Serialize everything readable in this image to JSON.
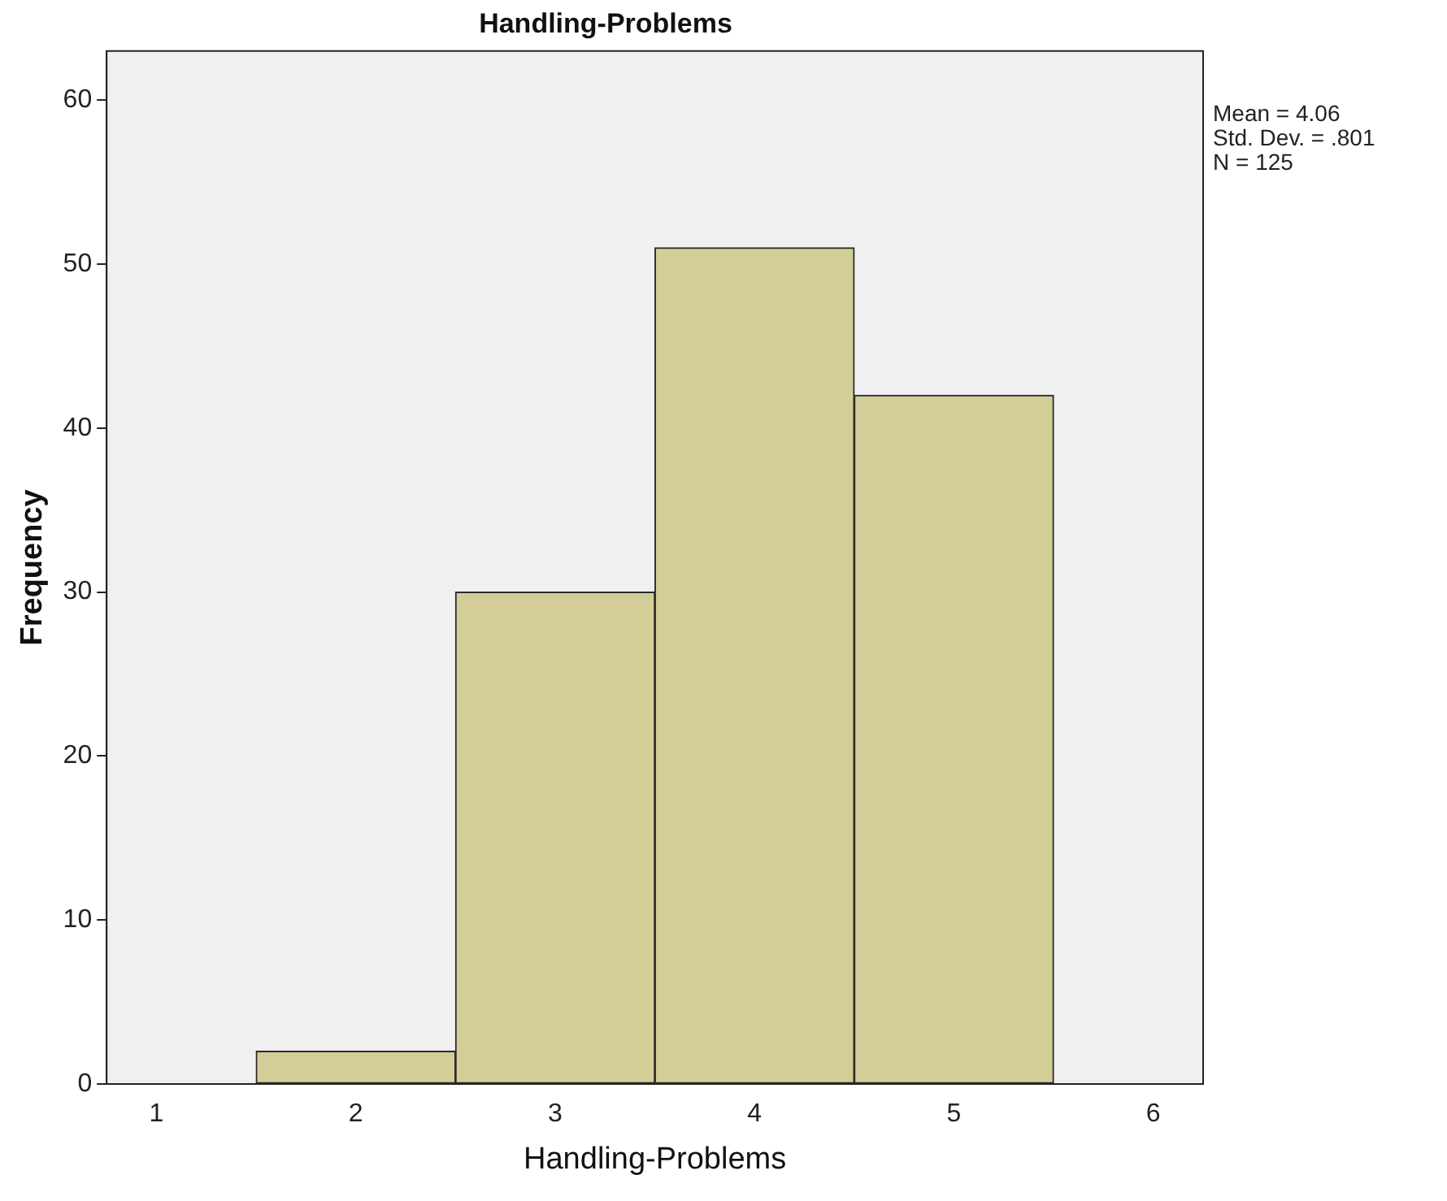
{
  "chart_data": {
    "type": "histogram",
    "title": "Handling-Problems",
    "xlabel": "Handling-Problems",
    "ylabel": "Frequency",
    "bins": [
      1.5,
      2.5,
      3.5,
      4.5,
      5.5
    ],
    "values": [
      2,
      30,
      51,
      42
    ],
    "color": "#d3ce97",
    "xlim": [
      0.75,
      6.25
    ],
    "xticks": [
      1,
      2,
      3,
      4,
      5,
      6
    ],
    "ylim": [
      0,
      63
    ],
    "yticks": [
      0,
      10,
      20,
      30,
      40,
      50,
      60
    ],
    "grid": false,
    "legend": false,
    "annotations": [
      "Mean = 4.06",
      "Std. Dev. = .801",
      "N = 125"
    ]
  }
}
